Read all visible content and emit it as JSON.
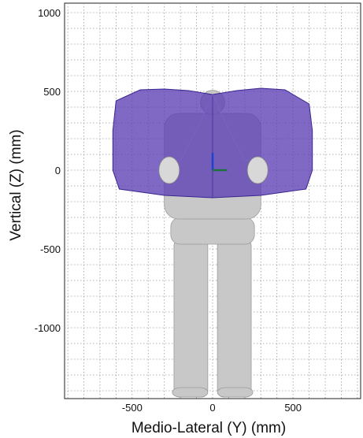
{
  "chart_data": {
    "type": "scatter",
    "title": "",
    "xlabel": "Medio-Lateral (Y) (mm)",
    "ylabel": "Vertical (Z) (mm)",
    "xlim": [
      -920,
      920
    ],
    "ylim": [
      -1450,
      1060
    ],
    "xticks": [
      -500,
      0,
      500
    ],
    "xtick_labels": [
      "-500",
      "0",
      "500"
    ],
    "yticks": [
      1000,
      500,
      0,
      -500,
      -1000
    ],
    "ytick_labels": [
      "1000",
      "500",
      "0",
      "-500",
      "-1000"
    ],
    "grid": true,
    "minor_grid_step": 100,
    "legend": "none",
    "series": [
      {
        "kind": "reach-envelope",
        "color": "#5b3fb5",
        "points": [
          [
            -600,
            440
          ],
          [
            -450,
            510
          ],
          [
            -300,
            515
          ],
          [
            -150,
            505
          ],
          [
            0,
            480
          ],
          [
            150,
            505
          ],
          [
            300,
            520
          ],
          [
            450,
            510
          ],
          [
            600,
            420
          ],
          [
            620,
            250
          ],
          [
            620,
            0
          ],
          [
            580,
            -120
          ],
          [
            300,
            -160
          ],
          [
            0,
            -175
          ],
          [
            -300,
            -160
          ],
          [
            -580,
            -120
          ],
          [
            -620,
            0
          ],
          [
            -620,
            250
          ]
        ]
      }
    ],
    "figure": {
      "kind": "body-scan",
      "color": "#c8c8c8",
      "head_center": [
        0,
        430
      ],
      "head_radius": 75,
      "torso_y": [
        -440,
        380
      ],
      "feet_y": -1440
    },
    "axes_markers": [
      {
        "axis": "vertical",
        "color": "#2040d0",
        "from": [
          0,
          0
        ],
        "to": [
          0,
          110
        ]
      },
      {
        "axis": "lateral",
        "color": "#207040",
        "from": [
          0,
          0
        ],
        "to": [
          90,
          0
        ]
      }
    ]
  }
}
